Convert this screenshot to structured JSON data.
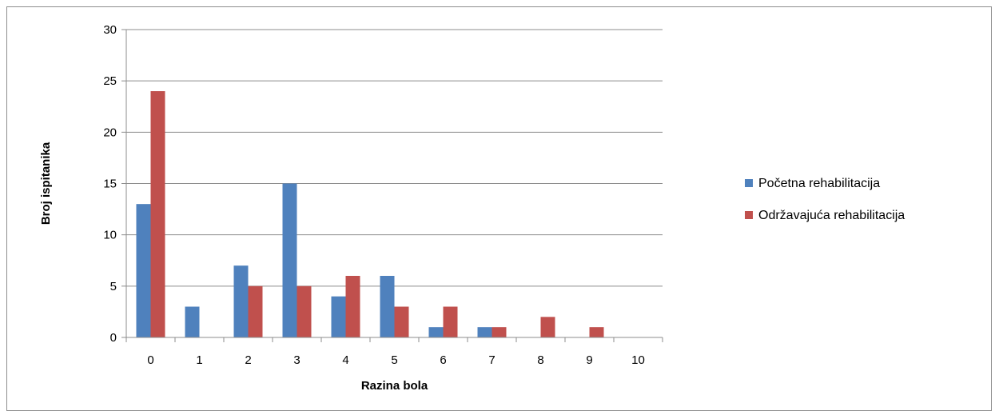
{
  "chart_data": {
    "type": "bar",
    "categories": [
      "0",
      "1",
      "2",
      "3",
      "4",
      "5",
      "6",
      "7",
      "8",
      "9",
      "10"
    ],
    "series": [
      {
        "name": "Početna rehabilitacija",
        "values": [
          13,
          3,
          7,
          15,
          4,
          6,
          1,
          1,
          0,
          0,
          0
        ],
        "color": "#4F81BD"
      },
      {
        "name": "Održavajuća rehabilitacija",
        "values": [
          24,
          0,
          5,
          5,
          6,
          3,
          3,
          1,
          2,
          1,
          0
        ],
        "color": "#C0504D"
      }
    ],
    "xlabel": "Razina bola",
    "ylabel": "Broj ispitanika",
    "ylim": [
      0,
      30
    ],
    "yticks": [
      0,
      5,
      10,
      15,
      20,
      25,
      30
    ],
    "grid": true,
    "legend_position": "right"
  }
}
